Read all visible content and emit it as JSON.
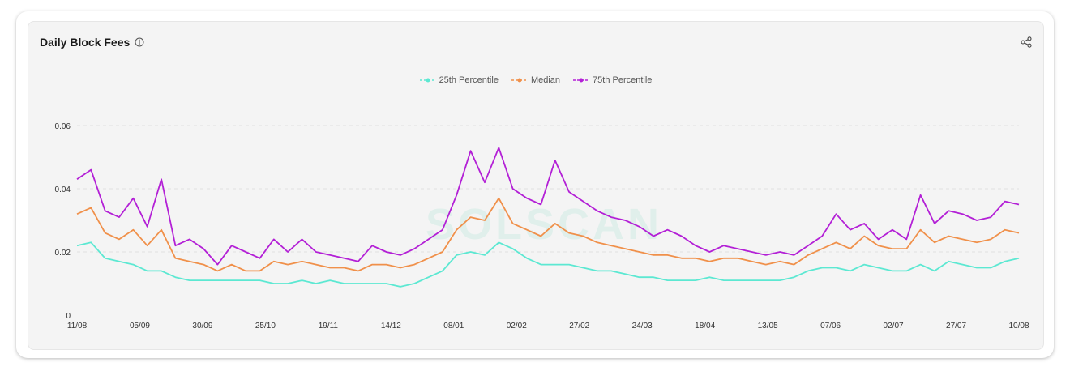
{
  "card": {
    "title": "Daily Block Fees"
  },
  "colors": {
    "p25": "#5ce8d2",
    "median": "#f0904a",
    "p75": "#b320d6",
    "grid": "#e0e0e0"
  },
  "chart_data": {
    "type": "line",
    "title": "Daily Block Fees",
    "legend_position": "top-center",
    "grid": true,
    "x_start": "2023-08-11",
    "x_end": "2024-08-10",
    "x_tick_labels": [
      "11/08",
      "05/09",
      "30/09",
      "25/10",
      "19/11",
      "14/12",
      "08/01",
      "02/02",
      "27/02",
      "24/03",
      "18/04",
      "13/05",
      "07/06",
      "02/07",
      "27/07",
      "10/08"
    ],
    "y_ticks": [
      0,
      0.02,
      0.04,
      0.06
    ],
    "ylim": [
      0,
      0.06
    ],
    "series": [
      {
        "name": "25th Percentile",
        "values": [
          0.022,
          0.023,
          0.018,
          0.017,
          0.016,
          0.014,
          0.014,
          0.012,
          0.011,
          0.011,
          0.011,
          0.011,
          0.011,
          0.011,
          0.01,
          0.01,
          0.011,
          0.01,
          0.011,
          0.01,
          0.01,
          0.01,
          0.01,
          0.009,
          0.01,
          0.012,
          0.014,
          0.019,
          0.02,
          0.019,
          0.023,
          0.021,
          0.018,
          0.016,
          0.016,
          0.016,
          0.015,
          0.014,
          0.014,
          0.013,
          0.012,
          0.012,
          0.011,
          0.011,
          0.011,
          0.012,
          0.011,
          0.011,
          0.011,
          0.011,
          0.011,
          0.012,
          0.014,
          0.015,
          0.015,
          0.014,
          0.016,
          0.015,
          0.014,
          0.014,
          0.016,
          0.014,
          0.017,
          0.016,
          0.015,
          0.015,
          0.017,
          0.018
        ]
      },
      {
        "name": "Median",
        "values": [
          0.032,
          0.034,
          0.026,
          0.024,
          0.027,
          0.022,
          0.027,
          0.018,
          0.017,
          0.016,
          0.014,
          0.016,
          0.014,
          0.014,
          0.017,
          0.016,
          0.017,
          0.016,
          0.015,
          0.015,
          0.014,
          0.016,
          0.016,
          0.015,
          0.016,
          0.018,
          0.02,
          0.027,
          0.031,
          0.03,
          0.037,
          0.029,
          0.027,
          0.025,
          0.029,
          0.026,
          0.025,
          0.023,
          0.022,
          0.021,
          0.02,
          0.019,
          0.019,
          0.018,
          0.018,
          0.017,
          0.018,
          0.018,
          0.017,
          0.016,
          0.017,
          0.016,
          0.019,
          0.021,
          0.023,
          0.021,
          0.025,
          0.022,
          0.021,
          0.021,
          0.027,
          0.023,
          0.025,
          0.024,
          0.023,
          0.024,
          0.027,
          0.026
        ]
      },
      {
        "name": "75th Percentile",
        "values": [
          0.043,
          0.046,
          0.033,
          0.031,
          0.037,
          0.028,
          0.043,
          0.022,
          0.024,
          0.021,
          0.016,
          0.022,
          0.02,
          0.018,
          0.024,
          0.02,
          0.024,
          0.02,
          0.019,
          0.018,
          0.017,
          0.022,
          0.02,
          0.019,
          0.021,
          0.024,
          0.027,
          0.038,
          0.052,
          0.042,
          0.053,
          0.04,
          0.037,
          0.035,
          0.049,
          0.039,
          0.036,
          0.033,
          0.031,
          0.03,
          0.028,
          0.025,
          0.027,
          0.025,
          0.022,
          0.02,
          0.022,
          0.021,
          0.02,
          0.019,
          0.02,
          0.019,
          0.022,
          0.025,
          0.032,
          0.027,
          0.029,
          0.024,
          0.027,
          0.024,
          0.038,
          0.029,
          0.033,
          0.032,
          0.03,
          0.031,
          0.036,
          0.035
        ]
      }
    ]
  }
}
